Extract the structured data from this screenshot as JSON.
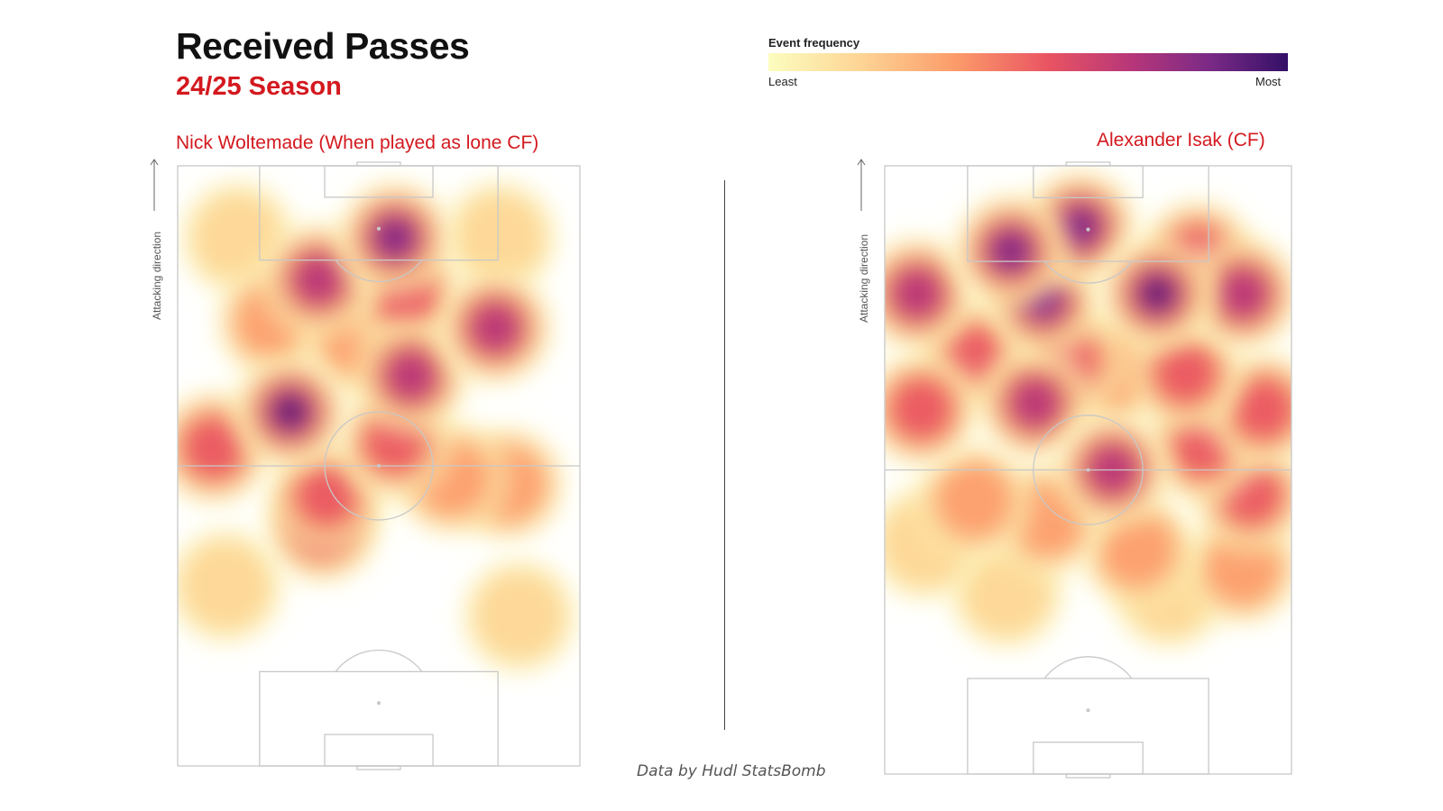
{
  "header": {
    "title": "Received Passes",
    "subtitle": "24/25 Season"
  },
  "legend": {
    "title": "Event frequency",
    "least": "Least",
    "most": "Most",
    "colors": [
      "#fcfdbf",
      "#fdd494",
      "#fc9b6a",
      "#e95462",
      "#b63679",
      "#7a2a86",
      "#341067"
    ]
  },
  "attacking_direction": "Attacking direction",
  "source": "Data by Hudl StatsBomb",
  "colors": {
    "accent": "#d3191f",
    "pitch_line": "#c8c8c8"
  },
  "chart_data": [
    {
      "type": "heatmap",
      "title": "Nick Woltemade (When played as lone CF)",
      "xlabel": "",
      "ylabel": "Attacking direction",
      "xlim": [
        0,
        100
      ],
      "ylim": [
        0,
        100
      ],
      "value_scale": [
        "Least",
        "Most"
      ],
      "hotspots": [
        {
          "x": 28,
          "y": 59,
          "intensity": 1.0
        },
        {
          "x": 54,
          "y": 88,
          "intensity": 0.82
        },
        {
          "x": 35,
          "y": 81,
          "intensity": 0.66
        },
        {
          "x": 57,
          "y": 78,
          "intensity": 0.58
        },
        {
          "x": 79,
          "y": 73,
          "intensity": 0.62
        },
        {
          "x": 58,
          "y": 65,
          "intensity": 0.6
        },
        {
          "x": 54,
          "y": 54,
          "intensity": 0.55
        },
        {
          "x": 9,
          "y": 53,
          "intensity": 0.56
        },
        {
          "x": 37,
          "y": 45,
          "intensity": 0.5
        },
        {
          "x": 36,
          "y": 40,
          "intensity": 0.42
        },
        {
          "x": 45,
          "y": 71,
          "intensity": 0.4
        },
        {
          "x": 24,
          "y": 74,
          "intensity": 0.36
        },
        {
          "x": 68,
          "y": 48,
          "intensity": 0.35
        },
        {
          "x": 82,
          "y": 47,
          "intensity": 0.25
        },
        {
          "x": 15,
          "y": 88,
          "intensity": 0.2
        },
        {
          "x": 80,
          "y": 88,
          "intensity": 0.22
        },
        {
          "x": 12,
          "y": 30,
          "intensity": 0.15
        },
        {
          "x": 85,
          "y": 25,
          "intensity": 0.15
        }
      ]
    },
    {
      "type": "heatmap",
      "title": "Alexander Isak (CF)",
      "xlabel": "",
      "ylabel": "Attacking direction",
      "xlim": [
        0,
        100
      ],
      "ylim": [
        0,
        100
      ],
      "value_scale": [
        "Least",
        "Most"
      ],
      "hotspots": [
        {
          "x": 67,
          "y": 79,
          "intensity": 1.0
        },
        {
          "x": 31,
          "y": 86,
          "intensity": 0.9
        },
        {
          "x": 48,
          "y": 90,
          "intensity": 0.85
        },
        {
          "x": 39,
          "y": 78,
          "intensity": 0.78
        },
        {
          "x": 8,
          "y": 79,
          "intensity": 0.7
        },
        {
          "x": 88,
          "y": 79,
          "intensity": 0.66
        },
        {
          "x": 77,
          "y": 85,
          "intensity": 0.55
        },
        {
          "x": 56,
          "y": 50,
          "intensity": 0.65
        },
        {
          "x": 37,
          "y": 61,
          "intensity": 0.6
        },
        {
          "x": 9,
          "y": 60,
          "intensity": 0.58
        },
        {
          "x": 93,
          "y": 60,
          "intensity": 0.55
        },
        {
          "x": 74,
          "y": 66,
          "intensity": 0.58
        },
        {
          "x": 22,
          "y": 69,
          "intensity": 0.5
        },
        {
          "x": 78,
          "y": 54,
          "intensity": 0.5
        },
        {
          "x": 45,
          "y": 68,
          "intensity": 0.45
        },
        {
          "x": 90,
          "y": 46,
          "intensity": 0.42
        },
        {
          "x": 22,
          "y": 45,
          "intensity": 0.4
        },
        {
          "x": 56,
          "y": 66,
          "intensity": 0.38
        },
        {
          "x": 62,
          "y": 37,
          "intensity": 0.3
        },
        {
          "x": 10,
          "y": 38,
          "intensity": 0.2
        },
        {
          "x": 40,
          "y": 42,
          "intensity": 0.3
        },
        {
          "x": 88,
          "y": 34,
          "intensity": 0.25
        },
        {
          "x": 30,
          "y": 30,
          "intensity": 0.15
        },
        {
          "x": 70,
          "y": 30,
          "intensity": 0.15
        }
      ]
    }
  ]
}
